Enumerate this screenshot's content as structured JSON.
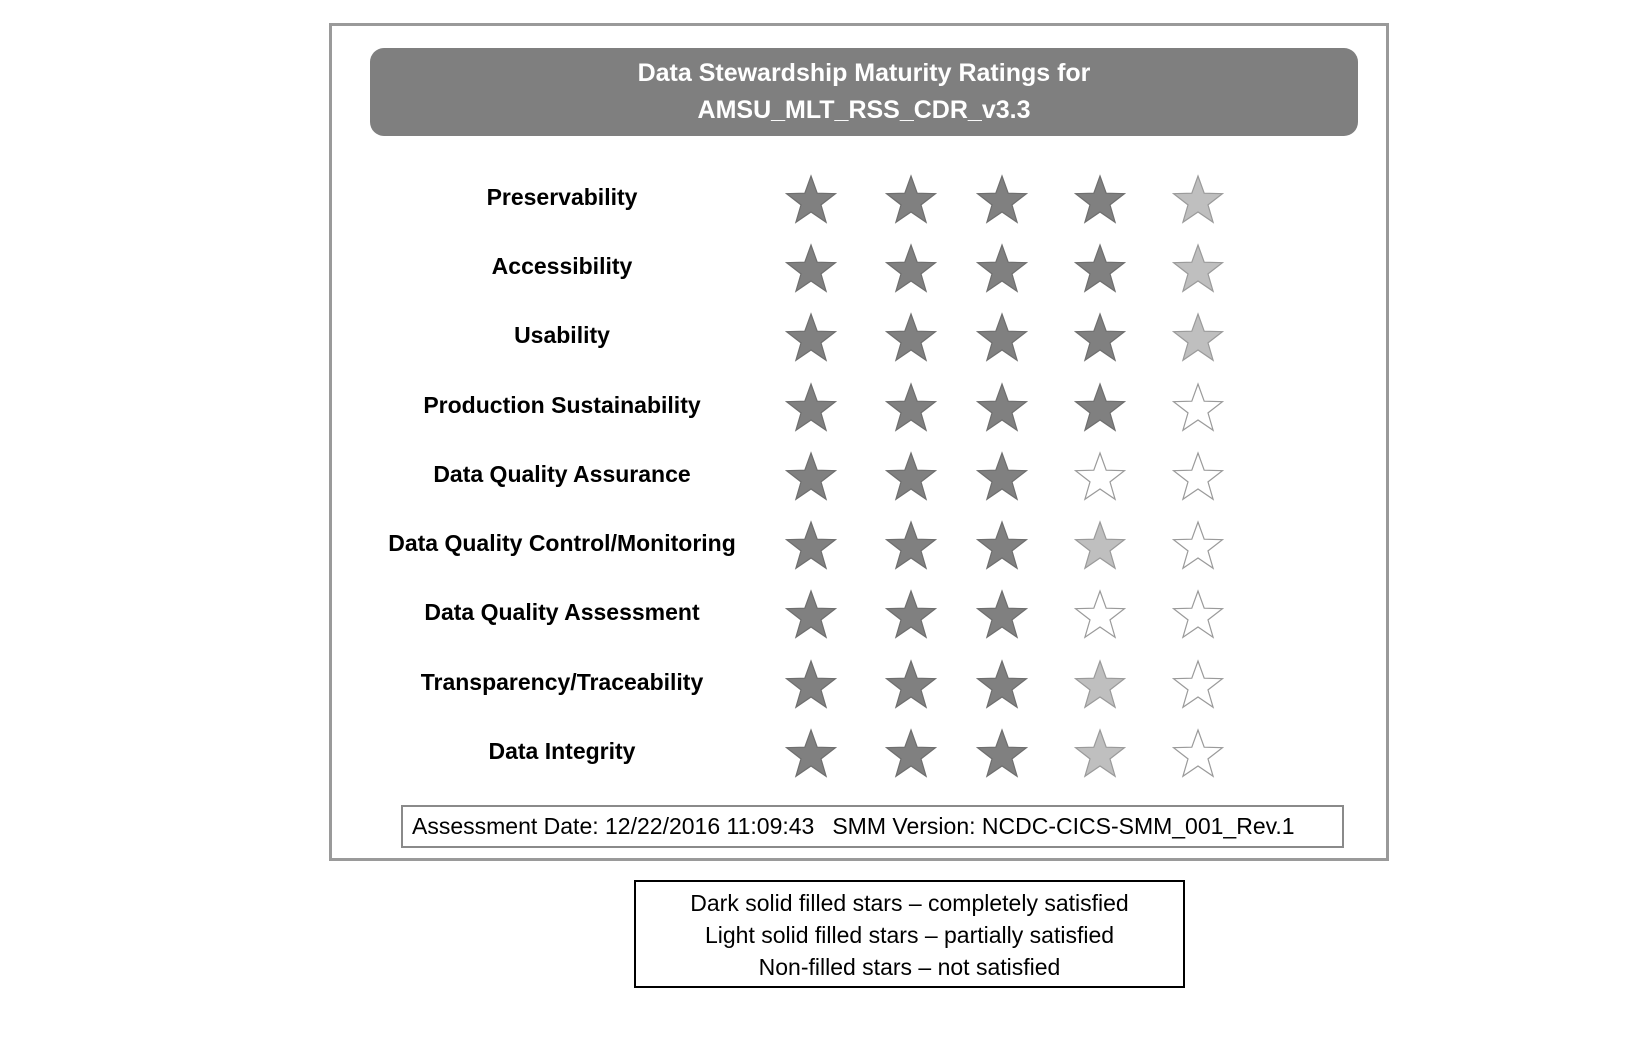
{
  "title": {
    "line1": "Data Stewardship Maturity Ratings for",
    "line2": "AMSU_MLT_RSS_CDR_v3.3"
  },
  "colors": {
    "dark_star": "#808080",
    "light_star": "#bfbfbf",
    "empty_star_stroke": "#9a9a9a",
    "title_bar": "#7f7f7f"
  },
  "ratings": [
    {
      "label": "Preservability",
      "stars": [
        "dark",
        "dark",
        "dark",
        "dark",
        "light"
      ]
    },
    {
      "label": "Accessibility",
      "stars": [
        "dark",
        "dark",
        "dark",
        "dark",
        "light"
      ]
    },
    {
      "label": "Usability",
      "stars": [
        "dark",
        "dark",
        "dark",
        "dark",
        "light"
      ]
    },
    {
      "label": "Production Sustainability",
      "stars": [
        "dark",
        "dark",
        "dark",
        "dark",
        "empty"
      ]
    },
    {
      "label": "Data Quality Assurance",
      "stars": [
        "dark",
        "dark",
        "dark",
        "empty",
        "empty"
      ]
    },
    {
      "label": "Data Quality Control/Monitoring",
      "stars": [
        "dark",
        "dark",
        "dark",
        "light",
        "empty"
      ]
    },
    {
      "label": "Data Quality Assessment",
      "stars": [
        "dark",
        "dark",
        "dark",
        "empty",
        "empty"
      ]
    },
    {
      "label": "Transparency/Traceability",
      "stars": [
        "dark",
        "dark",
        "dark",
        "light",
        "empty"
      ]
    },
    {
      "label": "Data Integrity",
      "stars": [
        "dark",
        "dark",
        "dark",
        "light",
        "empty"
      ]
    }
  ],
  "footer": {
    "assessment_date": "Assessment Date: 12/22/2016 11:09:43",
    "smm_version": "SMM Version: NCDC-CICS-SMM_001_Rev.1"
  },
  "legend": {
    "dark": "Dark solid filled stars – completely satisfied",
    "light": "Light solid filled stars – partially satisfied",
    "empty": "Non-filled stars – not satisfied"
  }
}
